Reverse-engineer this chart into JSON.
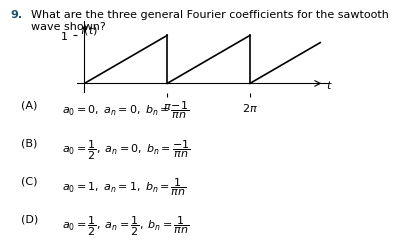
{
  "title_number": "9.",
  "title_text": "What are the three general Fourier coefficients for the sawtooth\nwave shown?",
  "bg_color": "#ffffff",
  "text_color": "#000000",
  "options": [
    {
      "label": "(A)",
      "text": "$a_0 = 0,\\, a_n = 0,\\, b_n = \\dfrac{-1}{\\pi n}$"
    },
    {
      "label": "(B)",
      "text": "$a_0 = \\dfrac{1}{2},\\, a_n = 0,\\, b_n = \\dfrac{-1}{\\pi n}$"
    },
    {
      "label": "(C)",
      "text": "$a_0 = 1,\\, a_n = 1,\\, b_n = \\dfrac{1}{\\pi n}$"
    },
    {
      "label": "(D)",
      "text": "$a_0 = \\dfrac{1}{2},\\, a_n = \\dfrac{1}{2},\\, b_n = \\dfrac{1}{\\pi n}$"
    }
  ]
}
